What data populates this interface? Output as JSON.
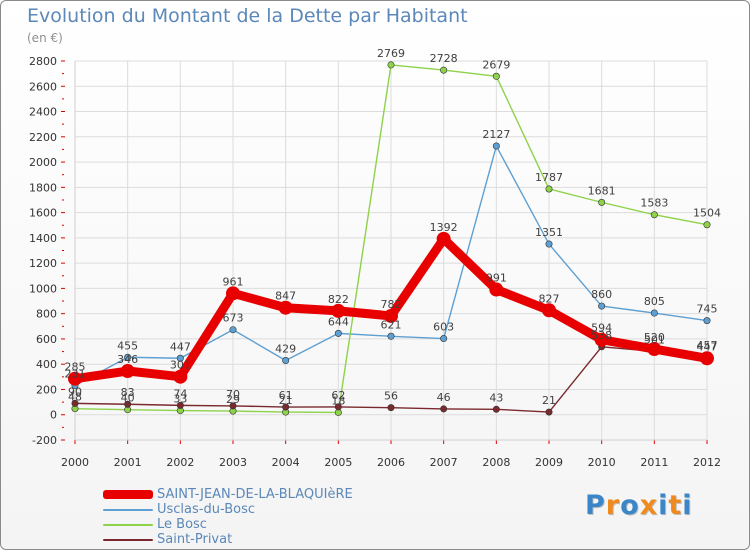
{
  "header": {
    "title": "Evolution du Montant de la Dette par Habitant",
    "unit": "(en €)"
  },
  "brand": {
    "logo_text": "Proxiti",
    "letter_colors": [
      "#3a86c8",
      "#f08a1e",
      "#3a86c8",
      "#f08a1e",
      "#3a86c8",
      "#f08a1e",
      "#3a86c8"
    ]
  },
  "chart_data": {
    "type": "line",
    "title": "Evolution du Montant de la Dette par Habitant",
    "subtitle": "(en €)",
    "xlabel": "",
    "ylabel": "",
    "x": [
      "2000",
      "2001",
      "2002",
      "2003",
      "2004",
      "2005",
      "2006",
      "2007",
      "2008",
      "2009",
      "2010",
      "2011",
      "2012"
    ],
    "ylim": [
      -200,
      2800
    ],
    "yticks": [
      -200,
      0,
      200,
      400,
      600,
      800,
      1000,
      1200,
      1400,
      1600,
      1800,
      2000,
      2200,
      2400,
      2600,
      2800
    ],
    "grid": true,
    "legend": "bottom-left",
    "series": [
      {
        "name": "SAINT-JEAN-DE-LA-BLAQUIèRE",
        "color": "#e80000",
        "emphasis": true,
        "values": [
          285,
          346,
          301,
          961,
          847,
          822,
          782,
          1392,
          991,
          827,
          594,
          520,
          447
        ],
        "labels": [
          "285",
          "346",
          "301",
          "961",
          "847",
          "822",
          "782",
          "1392",
          "991",
          "827",
          "594",
          "520",
          "447"
        ]
      },
      {
        "name": "Usclas-du-Bosc",
        "color": "#5fa0d2",
        "emphasis": false,
        "values": [
          231,
          455,
          447,
          673,
          429,
          644,
          621,
          603,
          2127,
          1351,
          860,
          805,
          745
        ],
        "labels": [
          "231",
          "455",
          "447",
          "673",
          "429",
          "644",
          "621",
          "603",
          "2127",
          "1351",
          "860",
          "805",
          "745"
        ]
      },
      {
        "name": "Le Bosc",
        "color": "#8ed24a",
        "emphasis": false,
        "values": [
          48,
          40,
          33,
          29,
          21,
          18,
          2769,
          2728,
          2679,
          1787,
          1681,
          1583,
          1504
        ],
        "labels": [
          "48",
          "40",
          "33",
          "29",
          "21",
          "18",
          "2769",
          "2728",
          "2679",
          "1787",
          "1681",
          "1583",
          "1504"
        ]
      },
      {
        "name": "Saint-Privat",
        "color": "#7a2a2e",
        "emphasis": false,
        "values": [
          90,
          83,
          74,
          70,
          61,
          62,
          56,
          46,
          43,
          21,
          538,
          501,
          457
        ],
        "labels": [
          "90",
          "83",
          "74",
          "70",
          "61",
          "62",
          "56",
          "46",
          "43",
          "21",
          "538",
          "501",
          "457"
        ]
      }
    ]
  }
}
